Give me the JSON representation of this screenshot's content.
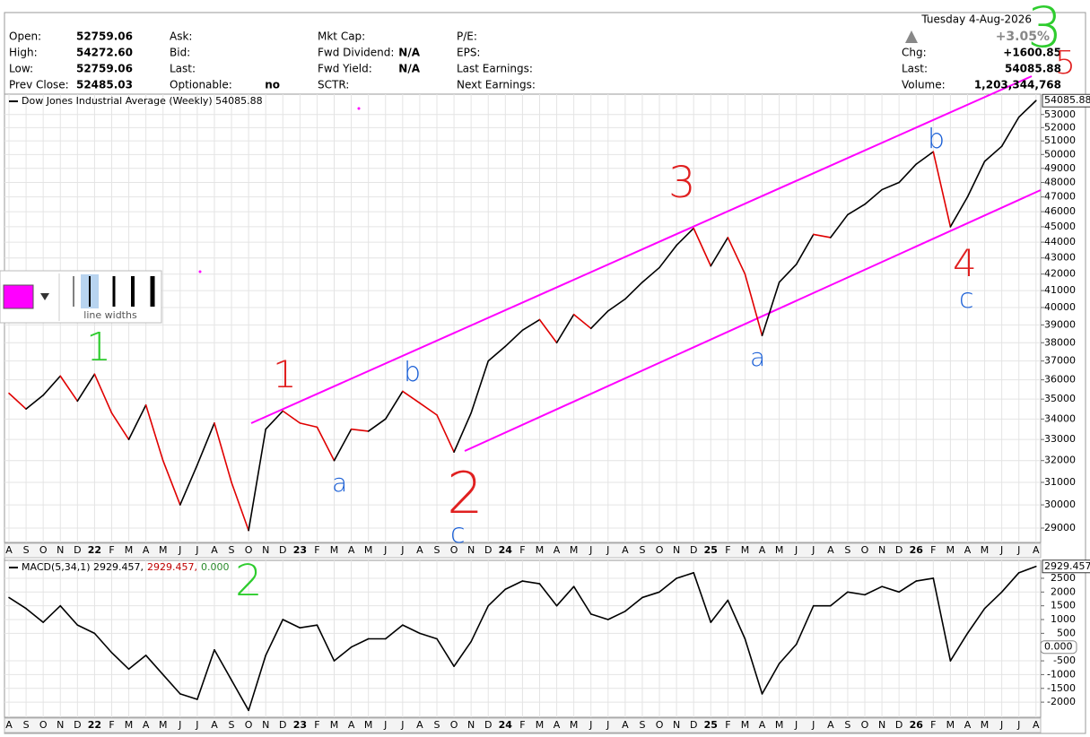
{
  "header": {
    "date": "Tuesday  4-Aug-2026",
    "change_pct": "+3.05%",
    "columns": [
      [
        {
          "label": "Open:",
          "value": "52759.06"
        },
        {
          "label": "High:",
          "value": "54272.60"
        },
        {
          "label": "Low:",
          "value": "52759.06"
        },
        {
          "label": "Prev Close:",
          "value": "52485.03"
        }
      ],
      [
        {
          "label": "Ask:"
        },
        {
          "label": "Bid:"
        },
        {
          "label": "Last:"
        },
        {
          "label": "Optionable:",
          "value": "no"
        }
      ],
      [
        {
          "label": "Mkt Cap:"
        },
        {
          "label": "Fwd Dividend:",
          "value": "N/A"
        },
        {
          "label": "Fwd Yield:",
          "value": "N/A"
        },
        {
          "label": "SCTR:"
        }
      ],
      [
        {
          "label": "P/E:"
        },
        {
          "label": "EPS:"
        },
        {
          "label": "Last Earnings:"
        },
        {
          "label": "Next Earnings:"
        }
      ],
      [
        {
          "label": "Chg:",
          "value": "+1600.85"
        },
        {
          "label": "Last:",
          "value": "54085.88"
        },
        {
          "label": "Volume:",
          "value": "1,203,344,768"
        }
      ]
    ]
  },
  "toolbar": {
    "caption": "line widths"
  },
  "annotations": [
    "1",
    "2",
    "3",
    "5",
    "1",
    "2",
    "3",
    "4",
    "a",
    "b",
    "c",
    "a",
    "b",
    "c"
  ],
  "chart_data": [
    {
      "type": "line",
      "title": "Dow Jones Industrial Average (Weekly) 54085.88",
      "categories": [
        "A",
        "S",
        "O",
        "N",
        "D",
        "22",
        "F",
        "M",
        "A",
        "M",
        "J",
        "J",
        "A",
        "S",
        "O",
        "N",
        "D",
        "23",
        "F",
        "M",
        "A",
        "M",
        "J",
        "J",
        "A",
        "S",
        "O",
        "N",
        "D",
        "24",
        "F",
        "M",
        "A",
        "M",
        "J",
        "J",
        "A",
        "S",
        "O",
        "N",
        "D",
        "25",
        "F",
        "M",
        "A",
        "M",
        "J",
        "J",
        "A",
        "S",
        "O",
        "N",
        "D",
        "26",
        "F",
        "M",
        "A",
        "M",
        "J",
        "J",
        "A"
      ],
      "values": [
        35300,
        34500,
        35200,
        36200,
        34900,
        36300,
        34300,
        33000,
        34700,
        32000,
        30000,
        31800,
        33800,
        31000,
        28900,
        33500,
        34400,
        33800,
        33600,
        32000,
        33500,
        33400,
        34000,
        35400,
        34800,
        34200,
        32400,
        34300,
        37000,
        37800,
        38700,
        39300,
        38000,
        39600,
        38800,
        39800,
        40500,
        41500,
        42400,
        43800,
        44900,
        42500,
        44300,
        42000,
        38400,
        41500,
        42600,
        44500,
        44300,
        45800,
        46500,
        47500,
        48000,
        49300,
        50200,
        45000,
        47000,
        49500,
        50600,
        52800,
        54085.88
      ],
      "color": "#000000",
      "down_color": "#e00000",
      "last_label": "54085.88",
      "log": true,
      "ylim": [
        28400,
        54600
      ],
      "yticks": [
        29000,
        30000,
        31000,
        32000,
        33000,
        34000,
        35000,
        36000,
        37000,
        38000,
        39000,
        40000,
        41000,
        42000,
        43000,
        44000,
        45000,
        46000,
        47000,
        48000,
        49000,
        50000,
        51000,
        52000,
        53000
      ],
      "grid": true
    },
    {
      "type": "line",
      "title": "MACD(5,34,1) 2929.457,",
      "signal_label": "2929.457,",
      "hist_label": "0.000",
      "categories": [
        "A",
        "S",
        "O",
        "N",
        "D",
        "22",
        "F",
        "M",
        "A",
        "M",
        "J",
        "J",
        "A",
        "S",
        "O",
        "N",
        "D",
        "23",
        "F",
        "M",
        "A",
        "M",
        "J",
        "J",
        "A",
        "S",
        "O",
        "N",
        "D",
        "24",
        "F",
        "M",
        "A",
        "M",
        "J",
        "J",
        "A",
        "S",
        "O",
        "N",
        "D",
        "25",
        "F",
        "M",
        "A",
        "M",
        "J",
        "J",
        "A",
        "S",
        "O",
        "N",
        "D",
        "26",
        "F",
        "M",
        "A",
        "M",
        "J",
        "J",
        "A"
      ],
      "values": [
        1800,
        1400,
        900,
        1500,
        800,
        500,
        -200,
        -800,
        -300,
        -1000,
        -1700,
        -1900,
        -100,
        -1200,
        -2300,
        -300,
        1000,
        700,
        800,
        -500,
        0,
        300,
        300,
        800,
        500,
        300,
        -700,
        200,
        1500,
        2100,
        2400,
        2300,
        1500,
        2200,
        1200,
        1000,
        1300,
        1800,
        2000,
        2500,
        2700,
        900,
        1700,
        300,
        -1700,
        -600,
        100,
        1500,
        1500,
        2000,
        1900,
        2200,
        2000,
        2400,
        2500,
        -500,
        500,
        1400,
        2000,
        2700,
        2929.457
      ],
      "color": "#000000",
      "last_label": "2929.457",
      "ylim": [
        -2550,
        3150
      ],
      "yticks": [
        -2000,
        -1500,
        -1000,
        -500,
        500,
        1000,
        1500,
        2000,
        2500
      ],
      "grid": true
    }
  ]
}
